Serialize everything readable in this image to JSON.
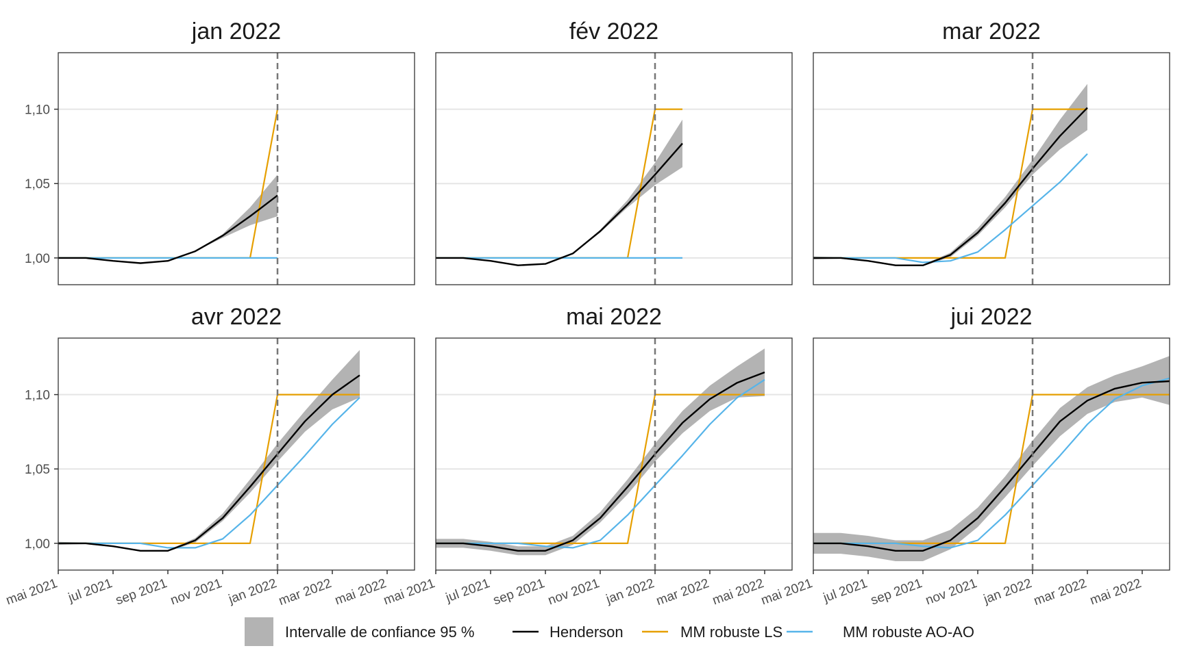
{
  "x_ticks": [
    "mai 2021",
    "jul 2021",
    "sep 2021",
    "nov 2021",
    "jan 2022",
    "mar 2022",
    "mai 2022"
  ],
  "y_ticks": [
    "1,00",
    "1,05",
    "1,10"
  ],
  "legend": [
    {
      "label": "Intervalle de confiance 95 %",
      "key": "ci",
      "color": "#b3b3b3"
    },
    {
      "label": "Henderson",
      "key": "henderson",
      "color": "#000000"
    },
    {
      "label": "MM robuste LS",
      "key": "ls",
      "color": "#e69f00"
    },
    {
      "label": "MM robuste AO-AO",
      "key": "ao",
      "color": "#56b4e9"
    }
  ],
  "chart_data": [
    {
      "type": "line",
      "title": "jan 2022",
      "xlim": [
        0,
        13
      ],
      "ylim": [
        0.982,
        1.138
      ],
      "vline_month": 8,
      "grid": true,
      "x_tick_months": [
        0,
        2,
        4,
        6,
        8,
        10,
        12
      ],
      "y_tick_values": [
        1.0,
        1.05,
        1.1
      ],
      "series": [
        {
          "key": "ci",
          "x": [
            0,
            1,
            2,
            3,
            4,
            5,
            6,
            7,
            8
          ],
          "lower": [
            1.0,
            1.0,
            0.998,
            0.9965,
            0.998,
            1.0045,
            1.0135,
            1.022,
            1.028
          ],
          "upper": [
            1.0,
            1.0,
            0.998,
            0.9965,
            0.998,
            1.0045,
            1.016,
            1.034,
            1.056
          ]
        },
        {
          "key": "henderson",
          "x": [
            0,
            1,
            2,
            3,
            4,
            5,
            6,
            7,
            8
          ],
          "y": [
            1.0,
            1.0,
            0.998,
            0.9965,
            0.998,
            1.0045,
            1.015,
            1.028,
            1.042
          ]
        },
        {
          "key": "ls",
          "x": [
            0,
            1,
            2,
            3,
            4,
            5,
            6,
            7,
            8
          ],
          "y": [
            1.0,
            1.0,
            1.0,
            1.0,
            1.0,
            1.0,
            1.0,
            1.0,
            1.1
          ]
        },
        {
          "key": "ao",
          "x": [
            0,
            1,
            2,
            3,
            4,
            5,
            6,
            7,
            8
          ],
          "y": [
            1.0,
            1.0,
            1.0,
            1.0,
            1.0,
            1.0,
            1.0,
            1.0,
            1.0
          ]
        }
      ]
    },
    {
      "type": "line",
      "title": "fév 2022",
      "xlim": [
        0,
        13
      ],
      "ylim": [
        0.982,
        1.138
      ],
      "vline_month": 8,
      "grid": true,
      "x_tick_months": [
        0,
        2,
        4,
        6,
        8,
        10,
        12
      ],
      "y_tick_values": [
        1.0,
        1.05,
        1.1
      ],
      "series": [
        {
          "key": "ci",
          "x": [
            0,
            1,
            2,
            3,
            4,
            5,
            6,
            7,
            8,
            9
          ],
          "lower": [
            1.0,
            1.0,
            0.998,
            0.995,
            0.996,
            1.003,
            1.017,
            1.034,
            1.049,
            1.061
          ],
          "upper": [
            1.0,
            1.0,
            0.998,
            0.995,
            0.996,
            1.003,
            1.019,
            1.039,
            1.064,
            1.093
          ]
        },
        {
          "key": "henderson",
          "x": [
            0,
            1,
            2,
            3,
            4,
            5,
            6,
            7,
            8,
            9
          ],
          "y": [
            1.0,
            1.0,
            0.998,
            0.995,
            0.996,
            1.003,
            1.018,
            1.036,
            1.056,
            1.077
          ]
        },
        {
          "key": "ls",
          "x": [
            0,
            1,
            2,
            3,
            4,
            5,
            6,
            7,
            8,
            9
          ],
          "y": [
            1.0,
            1.0,
            1.0,
            1.0,
            1.0,
            1.0,
            1.0,
            1.0,
            1.1,
            1.1
          ]
        },
        {
          "key": "ao",
          "x": [
            0,
            1,
            2,
            3,
            4,
            5,
            6,
            7,
            8,
            9
          ],
          "y": [
            1.0,
            1.0,
            1.0,
            1.0,
            1.0,
            1.0,
            1.0,
            1.0,
            1.0,
            1.0
          ]
        }
      ]
    },
    {
      "type": "line",
      "title": "mar 2022",
      "xlim": [
        0,
        13
      ],
      "ylim": [
        0.982,
        1.138
      ],
      "vline_month": 8,
      "grid": true,
      "x_tick_months": [
        0,
        2,
        4,
        6,
        8,
        10,
        12
      ],
      "y_tick_values": [
        1.0,
        1.05,
        1.1
      ],
      "series": [
        {
          "key": "ci",
          "x": [
            0,
            1,
            2,
            3,
            4,
            5,
            6,
            7,
            8,
            9,
            10
          ],
          "lower": [
            0.999,
            0.9995,
            0.9975,
            0.9945,
            0.9945,
            1.0005,
            1.015,
            1.034,
            1.056,
            1.073,
            1.086
          ],
          "upper": [
            1.001,
            1.0005,
            0.9985,
            0.9955,
            0.9955,
            1.0035,
            1.02,
            1.041,
            1.066,
            1.093,
            1.117
          ]
        },
        {
          "key": "henderson",
          "x": [
            0,
            1,
            2,
            3,
            4,
            5,
            6,
            7,
            8,
            9,
            10
          ],
          "y": [
            1.0,
            1.0,
            0.998,
            0.995,
            0.995,
            1.002,
            1.017,
            1.037,
            1.06,
            1.082,
            1.101
          ]
        },
        {
          "key": "ls",
          "x": [
            0,
            1,
            2,
            3,
            4,
            5,
            6,
            7,
            8,
            9,
            10
          ],
          "y": [
            1.0,
            1.0,
            1.0,
            1.0,
            1.0,
            1.0,
            1.0,
            1.0,
            1.1,
            1.1,
            1.1
          ]
        },
        {
          "key": "ao",
          "x": [
            0,
            1,
            2,
            3,
            4,
            5,
            6,
            7,
            8,
            9,
            10
          ],
          "y": [
            1.0,
            1.0,
            1.0,
            1.0,
            0.997,
            0.998,
            1.004,
            1.019,
            1.035,
            1.051,
            1.07
          ]
        }
      ]
    },
    {
      "type": "line",
      "title": "avr 2022",
      "xlim": [
        0,
        13
      ],
      "ylim": [
        0.982,
        1.138
      ],
      "vline_month": 8,
      "grid": true,
      "x_tick_months": [
        0,
        2,
        4,
        6,
        8,
        10,
        12
      ],
      "y_tick_values": [
        1.0,
        1.05,
        1.1
      ],
      "series": [
        {
          "key": "ci",
          "x": [
            0,
            1,
            2,
            3,
            4,
            5,
            6,
            7,
            8,
            9,
            10,
            11
          ],
          "lower": [
            0.999,
            0.9995,
            0.9975,
            0.9945,
            0.9945,
            1.0005,
            1.015,
            1.034,
            1.055,
            1.075,
            1.09,
            1.098
          ],
          "upper": [
            1.001,
            1.0005,
            0.9985,
            0.9955,
            0.9955,
            1.0035,
            1.02,
            1.043,
            1.067,
            1.089,
            1.11,
            1.13
          ]
        },
        {
          "key": "henderson",
          "x": [
            0,
            1,
            2,
            3,
            4,
            5,
            6,
            7,
            8,
            9,
            10,
            11
          ],
          "y": [
            1.0,
            1.0,
            0.998,
            0.995,
            0.995,
            1.002,
            1.017,
            1.038,
            1.06,
            1.082,
            1.1,
            1.113
          ]
        },
        {
          "key": "ls",
          "x": [
            0,
            1,
            2,
            3,
            4,
            5,
            6,
            7,
            8,
            9,
            10,
            11
          ],
          "y": [
            1.0,
            1.0,
            1.0,
            1.0,
            1.0,
            1.0,
            1.0,
            1.0,
            1.1,
            1.1,
            1.1,
            1.1
          ]
        },
        {
          "key": "ao",
          "x": [
            0,
            1,
            2,
            3,
            4,
            5,
            6,
            7,
            8,
            9,
            10,
            11
          ],
          "y": [
            1.0,
            1.0,
            1.0,
            1.0,
            0.997,
            0.997,
            1.003,
            1.019,
            1.039,
            1.059,
            1.08,
            1.098
          ]
        }
      ]
    },
    {
      "type": "line",
      "title": "mai 2022",
      "xlim": [
        0,
        13
      ],
      "ylim": [
        0.982,
        1.138
      ],
      "vline_month": 8,
      "grid": true,
      "x_tick_months": [
        0,
        2,
        4,
        6,
        8,
        10,
        12
      ],
      "y_tick_values": [
        1.0,
        1.05,
        1.1
      ],
      "series": [
        {
          "key": "ci",
          "x": [
            0,
            1,
            2,
            3,
            4,
            5,
            6,
            7,
            8,
            9,
            10,
            11,
            12
          ],
          "lower": [
            0.997,
            0.997,
            0.995,
            0.992,
            0.992,
            0.999,
            1.014,
            1.033,
            1.055,
            1.074,
            1.089,
            1.098,
            1.099
          ],
          "upper": [
            1.003,
            1.003,
            1.001,
            0.998,
            0.998,
            1.005,
            1.021,
            1.043,
            1.067,
            1.089,
            1.106,
            1.119,
            1.131
          ]
        },
        {
          "key": "henderson",
          "x": [
            0,
            1,
            2,
            3,
            4,
            5,
            6,
            7,
            8,
            9,
            10,
            11,
            12
          ],
          "y": [
            1.0,
            1.0,
            0.998,
            0.995,
            0.995,
            1.002,
            1.017,
            1.038,
            1.06,
            1.081,
            1.097,
            1.108,
            1.115
          ]
        },
        {
          "key": "ls",
          "x": [
            0,
            1,
            2,
            3,
            4,
            5,
            6,
            7,
            8,
            9,
            10,
            11,
            12
          ],
          "y": [
            1.0,
            1.0,
            1.0,
            1.0,
            1.0,
            1.0,
            1.0,
            1.0,
            1.1,
            1.1,
            1.1,
            1.1,
            1.1
          ]
        },
        {
          "key": "ao",
          "x": [
            0,
            1,
            2,
            3,
            4,
            5,
            6,
            7,
            8,
            9,
            10,
            11,
            12
          ],
          "y": [
            1.0,
            1.0,
            1.0,
            1.0,
            0.998,
            0.997,
            1.002,
            1.019,
            1.039,
            1.059,
            1.08,
            1.098,
            1.11
          ]
        }
      ]
    },
    {
      "type": "line",
      "title": "jui 2022",
      "xlim": [
        0,
        13
      ],
      "ylim": [
        0.982,
        1.138
      ],
      "vline_month": 8,
      "grid": true,
      "x_tick_months": [
        0,
        2,
        4,
        6,
        8,
        10,
        12
      ],
      "y_tick_values": [
        1.0,
        1.05,
        1.1
      ],
      "series": [
        {
          "key": "ci",
          "x": [
            0,
            1,
            2,
            3,
            4,
            5,
            6,
            7,
            8,
            9,
            10,
            11,
            12,
            13
          ],
          "lower": [
            0.993,
            0.993,
            0.991,
            0.988,
            0.988,
            0.996,
            1.011,
            1.031,
            1.052,
            1.072,
            1.087,
            1.095,
            1.098,
            1.093
          ],
          "upper": [
            1.007,
            1.007,
            1.005,
            1.002,
            1.002,
            1.009,
            1.024,
            1.045,
            1.069,
            1.091,
            1.105,
            1.113,
            1.119,
            1.126
          ]
        },
        {
          "key": "henderson",
          "x": [
            0,
            1,
            2,
            3,
            4,
            5,
            6,
            7,
            8,
            9,
            10,
            11,
            12,
            13
          ],
          "y": [
            1.0,
            1.0,
            0.998,
            0.995,
            0.995,
            1.002,
            1.017,
            1.038,
            1.06,
            1.082,
            1.096,
            1.104,
            1.108,
            1.109
          ]
        },
        {
          "key": "ls",
          "x": [
            0,
            1,
            2,
            3,
            4,
            5,
            6,
            7,
            8,
            9,
            10,
            11,
            12,
            13
          ],
          "y": [
            1.0,
            1.0,
            1.0,
            1.0,
            1.0,
            1.0,
            1.0,
            1.0,
            1.1,
            1.1,
            1.1,
            1.1,
            1.1,
            1.1
          ]
        },
        {
          "key": "ao",
          "x": [
            0,
            1,
            2,
            3,
            4,
            5,
            6,
            7,
            8,
            9,
            10,
            11,
            12,
            13
          ],
          "y": [
            1.0,
            1.0,
            1.0,
            1.0,
            0.998,
            0.997,
            1.002,
            1.019,
            1.039,
            1.059,
            1.08,
            1.097,
            1.106,
            1.111
          ]
        }
      ]
    }
  ]
}
